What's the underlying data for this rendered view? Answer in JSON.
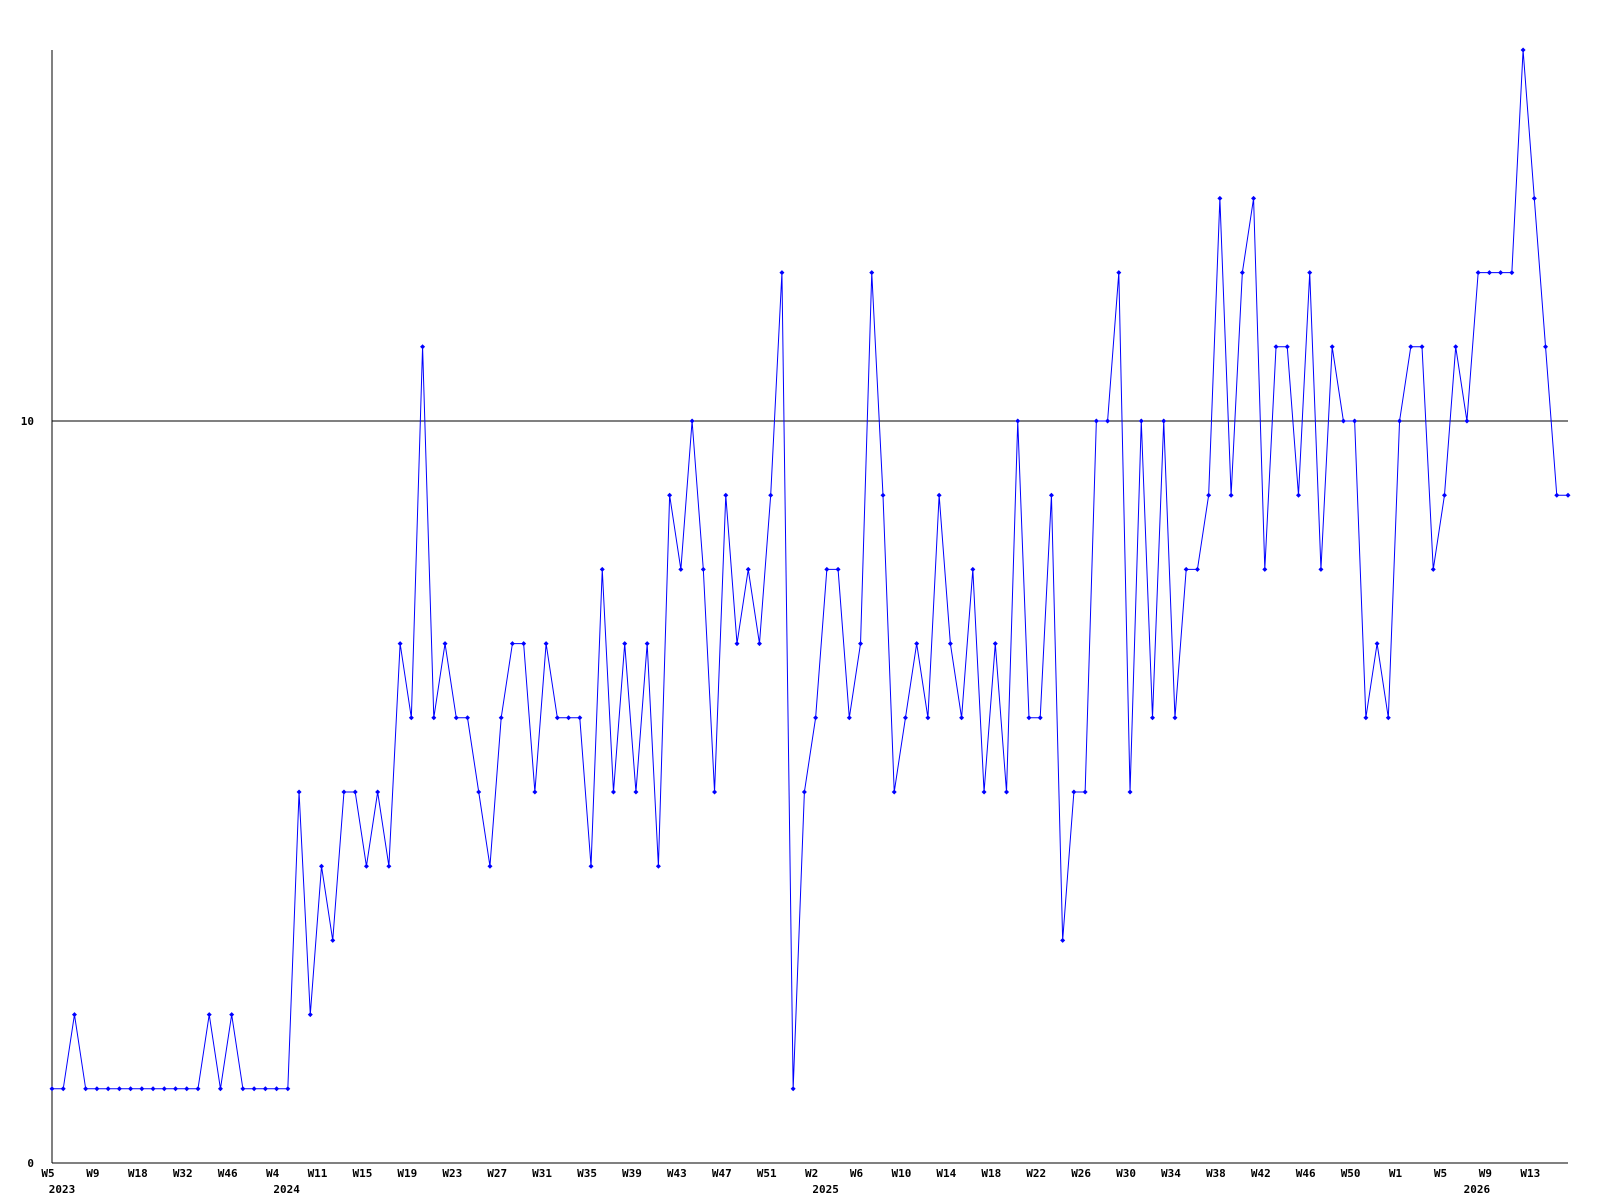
{
  "chart_data": {
    "type": "line",
    "categories": [
      "W5",
      null,
      null,
      null,
      "W9",
      null,
      null,
      null,
      "W18",
      null,
      null,
      null,
      "W32",
      null,
      null,
      null,
      "W46",
      null,
      null,
      null,
      "W4",
      null,
      null,
      null,
      "W11",
      null,
      null,
      null,
      "W15",
      null,
      null,
      null,
      "W19",
      null,
      null,
      null,
      "W23",
      null,
      null,
      null,
      "W27",
      null,
      null,
      null,
      "W31",
      null,
      null,
      null,
      "W35",
      null,
      null,
      null,
      "W39",
      null,
      null,
      null,
      "W43",
      null,
      null,
      null,
      "W47",
      null,
      null,
      null,
      "W51",
      null,
      null,
      null,
      "W2",
      null,
      null,
      null,
      "W6",
      null,
      null,
      null,
      "W10",
      null,
      null,
      null,
      "W14",
      null,
      null,
      null,
      "W18",
      null,
      null,
      null,
      "W22",
      null,
      null,
      null,
      "W26",
      null,
      null,
      null,
      "W30",
      null,
      null,
      null,
      "W34",
      null,
      null,
      null,
      "W38",
      null,
      null,
      null,
      "W42",
      null,
      null,
      null,
      "W46",
      null,
      null,
      null,
      "W50",
      null,
      null,
      null,
      "W1",
      null,
      null,
      null,
      "W5",
      null,
      null,
      null,
      "W9",
      null,
      null,
      null,
      "W13",
      null,
      null,
      null
    ],
    "category_years": [
      "2023",
      null,
      null,
      null,
      null,
      null,
      null,
      null,
      null,
      null,
      null,
      null,
      null,
      null,
      null,
      null,
      null,
      null,
      null,
      null,
      "2024",
      null,
      null,
      null,
      null,
      null,
      null,
      null,
      null,
      null,
      null,
      null,
      null,
      null,
      null,
      null,
      null,
      null,
      null,
      null,
      null,
      null,
      null,
      null,
      null,
      null,
      null,
      null,
      null,
      null,
      null,
      null,
      null,
      null,
      null,
      null,
      null,
      null,
      null,
      null,
      null,
      null,
      null,
      null,
      null,
      null,
      null,
      null,
      "2025",
      null,
      null,
      null,
      null,
      null,
      null,
      null,
      null,
      null,
      null,
      null,
      null,
      null,
      null,
      null,
      null,
      null,
      null,
      null,
      null,
      null,
      null,
      null,
      null,
      null,
      null,
      null,
      null,
      null,
      null,
      null,
      null,
      null,
      null,
      null,
      null,
      null,
      null,
      null,
      null,
      null,
      null,
      null,
      null,
      null,
      null,
      null,
      null,
      null,
      null,
      null,
      null,
      null,
      null,
      null,
      null,
      null,
      "2026",
      null,
      null,
      null,
      null,
      null,
      null,
      null,
      null,
      null,
      null,
      null,
      null,
      null,
      null,
      null
    ],
    "series": [
      {
        "color": "#0000ff",
        "values": [
          1,
          1,
          2,
          1,
          1,
          1,
          1,
          1,
          1,
          1,
          1,
          1,
          1,
          1,
          2,
          1,
          2,
          1,
          1,
          1,
          1,
          1,
          5,
          2,
          4,
          3,
          5,
          5,
          4,
          5,
          4,
          7,
          6,
          11,
          6,
          7,
          6,
          6,
          5,
          4,
          6,
          7,
          7,
          5,
          7,
          6,
          6,
          6,
          4,
          8,
          5,
          7,
          5,
          7,
          4,
          9,
          8,
          10,
          8,
          5,
          9,
          7,
          8,
          7,
          9,
          12,
          1,
          5,
          6,
          8,
          8,
          6,
          7,
          12,
          9,
          5,
          6,
          7,
          6,
          9,
          7,
          6,
          8,
          5,
          7,
          5,
          10,
          6,
          6,
          9,
          3,
          5,
          5,
          10,
          10,
          12,
          5,
          10,
          6,
          10,
          6,
          8,
          8,
          9,
          13,
          9,
          12,
          13,
          8,
          11,
          11,
          9,
          12,
          8,
          11,
          10,
          10,
          6,
          7,
          6,
          10,
          11,
          11,
          8,
          9,
          11,
          10,
          12,
          12,
          12,
          12,
          15,
          13,
          11,
          9,
          9
        ]
      }
    ],
    "ylim": [
      0,
      15
    ],
    "yticks": [
      0,
      10
    ],
    "grid": true
  }
}
